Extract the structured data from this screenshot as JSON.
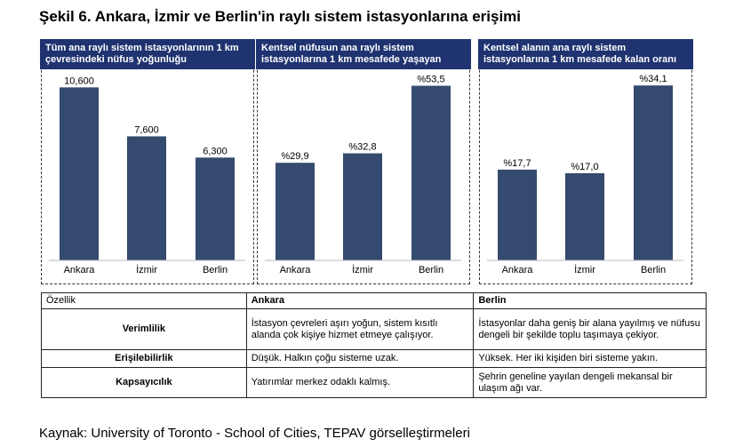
{
  "title": "Şekil 6. Ankara, İzmir ve Berlin'in raylı sistem istasyonlarına erişimi",
  "colors": {
    "bar": "#344a6e",
    "header": "#1f3370"
  },
  "chart_data": [
    {
      "type": "bar",
      "title": "Tüm ana raylı sistem istasyonlarının 1 km çevresindeki nüfus yoğunluğu",
      "categories": [
        "Ankara",
        "İzmir",
        "Berlin"
      ],
      "values": [
        10600,
        7600,
        6300
      ],
      "labels": [
        "10,600",
        "7,600",
        "6,300"
      ],
      "ylim": [
        0,
        11000
      ]
    },
    {
      "type": "bar",
      "title": "Kentsel nüfusun ana raylı sistem istasyonlarına 1 km mesafede yaşayan",
      "categories": [
        "Ankara",
        "İzmir",
        "Berlin"
      ],
      "values": [
        29.9,
        32.8,
        53.5
      ],
      "labels": [
        "%29,9",
        "%32,8",
        "%53,5"
      ],
      "ylim": [
        0,
        55
      ]
    },
    {
      "type": "bar",
      "title": "Kentsel alanın ana raylı sistem istasyonlarına 1 km mesafede kalan oranı",
      "categories": [
        "Ankara",
        "İzmir",
        "Berlin"
      ],
      "values": [
        17.7,
        17.0,
        34.1
      ],
      "labels": [
        "%17,7",
        "%17,0",
        "%34,1"
      ],
      "ylim": [
        0,
        35
      ]
    }
  ],
  "table": {
    "headers": [
      "Özellik",
      "Ankara",
      "Berlin"
    ],
    "rows": [
      {
        "feature": "Verimlilik",
        "ankara": "İstasyon çevreleri aşırı yoğun, sistem kısıtlı alanda çok kişiye hizmet etmeye çalışıyor.",
        "berlin": "İstasyonlar daha geniş bir alana yayılmış ve nüfusu dengeli bir şekilde toplu taşımaya çekiyor."
      },
      {
        "feature": "Erişilebilirlik",
        "ankara": "Düşük. Halkın çoğu sisteme uzak.",
        "berlin": "Yüksek. Her iki kişiden biri sisteme yakın."
      },
      {
        "feature": "Kapsayıcılık",
        "ankara": "Yatırımlar merkez odaklı kalmış.",
        "berlin": "Şehrin geneline yayılan dengeli mekansal bir ulaşım ağı var."
      }
    ]
  },
  "source": "Kaynak: University of Toronto - School of Cities, TEPAV görselleştirmeleri"
}
